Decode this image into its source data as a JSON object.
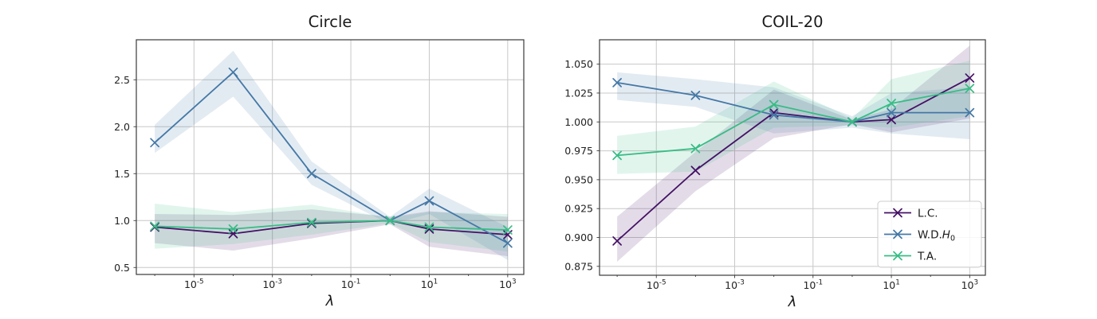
{
  "figure": {
    "background": "#ffffff",
    "xlabel": "λ",
    "series_colors": {
      "lc": "#451166",
      "wdh0": "#4478a6",
      "ta": "#38bc85"
    },
    "grid_color": "#c8c8c8",
    "spine_color": "#3a3a3a",
    "text_color": "#1a1a1a",
    "band_opacity": 0.15
  },
  "chart_data": [
    {
      "type": "line",
      "id": "circle",
      "title": "Circle",
      "xlabel": "λ",
      "xscale": "log",
      "grid": true,
      "x": [
        1e-06,
        0.0001,
        0.01,
        1.0,
        10.0,
        1000.0
      ],
      "xtick_exponents": [
        -5,
        -3,
        -1,
        1,
        3
      ],
      "xlim_exponents": [
        -6.47,
        3.41
      ],
      "ylim": [
        0.426,
        2.926
      ],
      "yticks": [
        0.5,
        1.0,
        1.5,
        2.0,
        2.5
      ],
      "ytick_labels": [
        "0.5",
        "1.0",
        "1.5",
        "2.0",
        "2.5"
      ],
      "series": [
        {
          "key": "lc",
          "name": "L.C.",
          "values": [
            0.93,
            0.86,
            0.97,
            1.0,
            0.91,
            0.85
          ],
          "band_upper": [
            1.07,
            1.06,
            1.12,
            1.04,
            1.1,
            1.04
          ],
          "band_lower": [
            0.76,
            0.68,
            0.81,
            0.96,
            0.72,
            0.62
          ]
        },
        {
          "key": "wdh0",
          "name": "W.D.H₀",
          "values": [
            1.83,
            2.58,
            1.5,
            1.0,
            1.21,
            0.76
          ],
          "band_upper": [
            2.02,
            2.81,
            1.63,
            1.04,
            1.34,
            0.93
          ],
          "band_lower": [
            1.72,
            2.32,
            1.38,
            0.96,
            1.07,
            0.58
          ]
        },
        {
          "key": "ta",
          "name": "T.A.",
          "values": [
            0.94,
            0.91,
            0.98,
            1.0,
            0.93,
            0.9
          ],
          "band_upper": [
            1.18,
            1.09,
            1.17,
            1.03,
            1.09,
            1.07
          ],
          "band_lower": [
            0.7,
            0.75,
            0.85,
            0.97,
            0.77,
            0.67
          ]
        }
      ]
    },
    {
      "type": "line",
      "id": "coil-20",
      "title": "COIL-20",
      "xlabel": "λ",
      "xscale": "log",
      "grid": true,
      "x": [
        1e-06,
        0.0001,
        0.01,
        1.0,
        10.0,
        1000.0
      ],
      "xtick_exponents": [
        -5,
        -3,
        -1,
        1,
        3
      ],
      "xlim_exponents": [
        -6.45,
        3.4
      ],
      "ylim": [
        0.8673,
        1.0711
      ],
      "yticks": [
        0.875,
        0.9,
        0.925,
        0.95,
        0.975,
        1.0,
        1.025,
        1.05
      ],
      "ytick_labels": [
        "0.875",
        "0.900",
        "0.925",
        "0.950",
        "0.975",
        "1.000",
        "1.025",
        "1.050"
      ],
      "series": [
        {
          "key": "lc",
          "name": "L.C.",
          "values": [
            0.897,
            0.958,
            1.008,
            1.0,
            1.002,
            1.038
          ],
          "band_upper": [
            0.918,
            0.974,
            1.028,
            1.002,
            1.011,
            1.066
          ],
          "band_lower": [
            0.879,
            0.94,
            0.986,
            0.998,
            0.991,
            1.003
          ]
        },
        {
          "key": "wdh0",
          "name": "W.D.H₀",
          "values": [
            1.034,
            1.023,
            1.006,
            1.0,
            1.008,
            1.008
          ],
          "band_upper": [
            1.043,
            1.037,
            1.03,
            1.005,
            1.025,
            1.03
          ],
          "band_lower": [
            1.019,
            1.013,
            0.99,
            0.995,
            0.99,
            0.985
          ]
        },
        {
          "key": "ta",
          "name": "T.A.",
          "values": [
            0.971,
            0.977,
            1.015,
            1.0,
            1.016,
            1.029
          ],
          "band_upper": [
            0.988,
            0.996,
            1.035,
            1.003,
            1.037,
            1.053
          ],
          "band_lower": [
            0.955,
            0.957,
            0.995,
            0.997,
            0.995,
            1.005
          ]
        }
      ],
      "legend": {
        "location": "lower right",
        "entries": [
          {
            "series": "lc",
            "label": "L.C."
          },
          {
            "series": "wdh0",
            "label": "W.D.H₀"
          },
          {
            "series": "ta",
            "label": "T.A."
          }
        ]
      }
    }
  ]
}
